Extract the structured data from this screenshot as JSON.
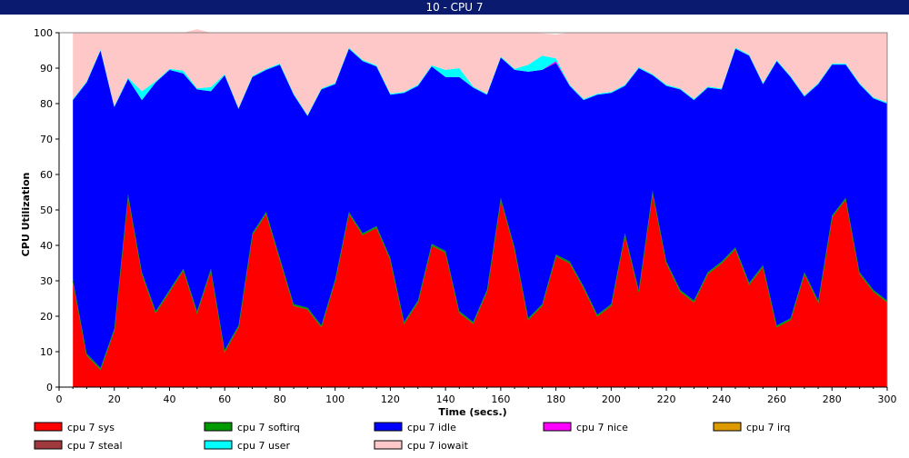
{
  "window": {
    "title": "10 - CPU 7"
  },
  "chart_data": {
    "type": "area",
    "stacked": true,
    "xlabel": "Time (secs.)",
    "ylabel": "CPU Utilization",
    "xlim": [
      0,
      300
    ],
    "ylim": [
      0,
      100
    ],
    "x_ticks": [
      0,
      20,
      40,
      60,
      80,
      100,
      120,
      140,
      160,
      180,
      200,
      220,
      240,
      260,
      280,
      300
    ],
    "y_ticks": [
      0,
      10,
      20,
      30,
      40,
      50,
      60,
      70,
      80,
      90,
      100
    ],
    "grid": false,
    "legend_position": "bottom",
    "x": [
      5,
      10,
      15,
      20,
      25,
      30,
      35,
      40,
      45,
      50,
      55,
      60,
      65,
      70,
      75,
      80,
      85,
      90,
      95,
      100,
      105,
      110,
      115,
      120,
      125,
      130,
      135,
      140,
      145,
      150,
      155,
      160,
      165,
      170,
      175,
      180,
      185,
      190,
      195,
      200,
      205,
      210,
      215,
      220,
      225,
      230,
      235,
      240,
      245,
      250,
      255,
      260,
      265,
      270,
      275,
      280,
      285,
      290,
      295,
      300
    ],
    "series": [
      {
        "name": "cpu 7 sys",
        "color": "#ff0000",
        "values": [
          30,
          9,
          5,
          16,
          54,
          32,
          21,
          27,
          33,
          21,
          33,
          10,
          17,
          43,
          49,
          36,
          23,
          22,
          17,
          30,
          49,
          43,
          45,
          36,
          18,
          24,
          40,
          38,
          21,
          18,
          27,
          53,
          39,
          19,
          23,
          37,
          35,
          28,
          20,
          23,
          43,
          27,
          55,
          35,
          27,
          24,
          32,
          35,
          39,
          29,
          34,
          17,
          19,
          32,
          24,
          48,
          53,
          32,
          27,
          24
        ]
      },
      {
        "name": "cpu 7 softirq",
        "color": "#009900",
        "values": [
          0.4,
          0.4,
          0.4,
          0.4,
          0.4,
          0.4,
          0.4,
          0.4,
          0.4,
          0.4,
          0.4,
          0.4,
          0.4,
          0.4,
          0.4,
          0.4,
          0.4,
          0.4,
          0.4,
          0.4,
          0.4,
          0.4,
          0.4,
          0.4,
          0.4,
          0.4,
          0.4,
          0.4,
          0.4,
          0.4,
          0.4,
          0.4,
          0.4,
          0.4,
          0.4,
          0.4,
          0.4,
          0.4,
          0.4,
          0.4,
          0.4,
          0.4,
          0.4,
          0.4,
          0.4,
          0.4,
          0.4,
          0.4,
          0.4,
          0.4,
          0.4,
          0.4,
          0.4,
          0.4,
          0.4,
          0.4,
          0.4,
          0.4,
          0.4,
          0.4
        ]
      },
      {
        "name": "cpu 7 idle",
        "color": "#0000ff",
        "values": [
          50.6,
          76.6,
          89.6,
          62.6,
          32.6,
          48.6,
          64.6,
          62.1,
          55.1,
          62.6,
          50.1,
          77.6,
          61.1,
          44.1,
          40.1,
          54.6,
          59.1,
          54.1,
          66.6,
          55.1,
          46.1,
          48.6,
          45.1,
          46.1,
          64.6,
          60.6,
          50.1,
          49.1,
          66.1,
          66.1,
          55.1,
          39.6,
          50.1,
          69.6,
          66.1,
          54.1,
          49.6,
          52.6,
          62.1,
          59.6,
          41.6,
          62.6,
          32.6,
          49.6,
          56.6,
          56.6,
          52.1,
          48.6,
          56.1,
          64.1,
          51.1,
          74.6,
          68.1,
          49.6,
          61.1,
          42.6,
          37.6,
          53.1,
          54.1,
          55.6
        ]
      },
      {
        "name": "cpu 7 nice",
        "color": "#ff00ff",
        "values": [
          0,
          0,
          0,
          0,
          0,
          0,
          0,
          0,
          0,
          0,
          0,
          0,
          0,
          0,
          0,
          0,
          0,
          0,
          0,
          0,
          0,
          0,
          0,
          0,
          0,
          0,
          0,
          0,
          0,
          0,
          0,
          0,
          0,
          0,
          0,
          0.5,
          0,
          0,
          0,
          0,
          0,
          0,
          0,
          0,
          0,
          0,
          0,
          0,
          0,
          0,
          0,
          0,
          0,
          0,
          0,
          0,
          0,
          0,
          0,
          0
        ]
      },
      {
        "name": "cpu 7 irq",
        "color": "#dd9900",
        "values": [
          0,
          0,
          0,
          0,
          0,
          0,
          0,
          0,
          0,
          0,
          0,
          0,
          0,
          0,
          0,
          0,
          0,
          0,
          0,
          0,
          0,
          0,
          0,
          0,
          0,
          0,
          0,
          0,
          0,
          0,
          0,
          0,
          0,
          0,
          0,
          0,
          0,
          0,
          0,
          0,
          0,
          0,
          0,
          0,
          0,
          0,
          0,
          0,
          0,
          0,
          0,
          0,
          0,
          0,
          0,
          0,
          0,
          0,
          0,
          0
        ]
      },
      {
        "name": "cpu 7 steal",
        "color": "#a0393e",
        "values": [
          0,
          0,
          0,
          0,
          0,
          0,
          0,
          0,
          0,
          0,
          0,
          0,
          0,
          0,
          0,
          0,
          0,
          0,
          0,
          0,
          0,
          0,
          0,
          0,
          0,
          0,
          0,
          0,
          0,
          0,
          0,
          0,
          0,
          0,
          0,
          0,
          0,
          0,
          0,
          0,
          0,
          0,
          0,
          0,
          0,
          0,
          0,
          0,
          0,
          0,
          0,
          0,
          0,
          0,
          0,
          0,
          0,
          0,
          0,
          0
        ]
      },
      {
        "name": "cpu 7 user",
        "color": "#00ffff",
        "values": [
          0.3,
          0.3,
          0.3,
          0.3,
          0.3,
          2.5,
          0.3,
          0.3,
          0.8,
          0.3,
          1.2,
          0.3,
          0.3,
          0.3,
          0.3,
          0.3,
          0.3,
          0.3,
          0.3,
          0.3,
          0.3,
          0.3,
          0.3,
          0.3,
          0.3,
          0.3,
          0.3,
          2.0,
          2.5,
          0.3,
          0.3,
          0.3,
          0.3,
          2.0,
          4.0,
          0.8,
          0.3,
          0.3,
          0.3,
          0.3,
          0.3,
          0.3,
          0.3,
          0.3,
          0.3,
          0.3,
          0.3,
          0.3,
          0.3,
          0.3,
          0.3,
          0.3,
          0.3,
          0.3,
          0.3,
          0.3,
          0.3,
          0.3,
          0.3,
          0.3
        ]
      },
      {
        "name": "cpu 7 iowait",
        "color": "#ffc8c8",
        "values": [
          18.7,
          13.7,
          4.7,
          20.7,
          12.7,
          16.5,
          13.7,
          10.2,
          10.7,
          16.7,
          15.3,
          11.7,
          21.2,
          12.2,
          10.2,
          8.7,
          17.2,
          23.2,
          15.7,
          14.2,
          4.2,
          7.7,
          9.2,
          17.2,
          16.7,
          14.7,
          9.2,
          10.5,
          10.0,
          15.2,
          17.2,
          6.7,
          10.2,
          9.0,
          6.3,
          6.7,
          14.7,
          18.7,
          17.2,
          16.7,
          14.7,
          9.7,
          11.7,
          14.7,
          15.7,
          18.7,
          15.2,
          15.7,
          4.2,
          6.2,
          14.2,
          7.7,
          12.2,
          17.7,
          14.2,
          8.7,
          8.7,
          14.2,
          18.2,
          19.7
        ]
      }
    ]
  }
}
